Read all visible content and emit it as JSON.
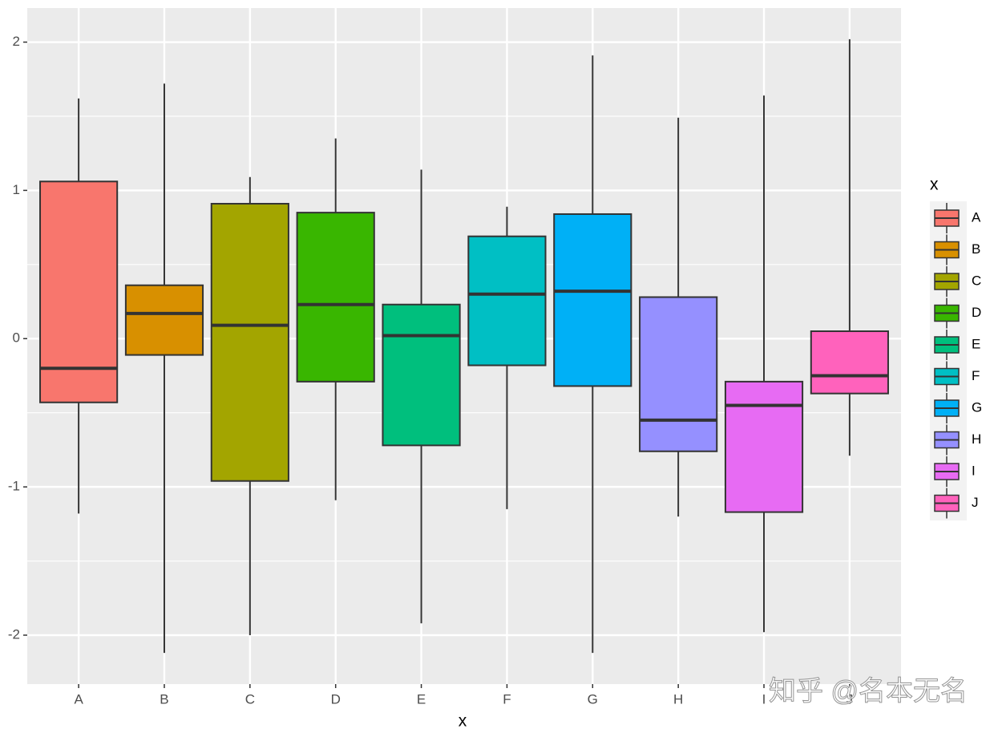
{
  "chart_data": {
    "type": "box",
    "x_label": "x",
    "legend_title": "x",
    "watermark": "知乎 @名本无名",
    "categories": [
      "A",
      "B",
      "C",
      "D",
      "E",
      "F",
      "G",
      "H",
      "I",
      "J"
    ],
    "colors": [
      "#F8766D",
      "#D89000",
      "#A3A500",
      "#39B600",
      "#00BF7D",
      "#00BFC4",
      "#00B0F6",
      "#9590FF",
      "#E76BF3",
      "#FF62BC"
    ],
    "boxes": [
      {
        "whisker_low": -1.18,
        "q1": -0.43,
        "median": -0.2,
        "q3": 1.06,
        "whisker_high": 1.62
      },
      {
        "whisker_low": -2.12,
        "q1": -0.11,
        "median": 0.17,
        "q3": 0.36,
        "whisker_high": 1.72
      },
      {
        "whisker_low": -2.0,
        "q1": -0.96,
        "median": 0.09,
        "q3": 0.91,
        "whisker_high": 1.09
      },
      {
        "whisker_low": -1.09,
        "q1": -0.29,
        "median": 0.23,
        "q3": 0.85,
        "whisker_high": 1.35
      },
      {
        "whisker_low": -1.92,
        "q1": -0.72,
        "median": 0.02,
        "q3": 0.23,
        "whisker_high": 1.14
      },
      {
        "whisker_low": -1.15,
        "q1": -0.18,
        "median": 0.3,
        "q3": 0.69,
        "whisker_high": 0.89
      },
      {
        "whisker_low": -2.12,
        "q1": -0.32,
        "median": 0.32,
        "q3": 0.84,
        "whisker_high": 1.91
      },
      {
        "whisker_low": -1.2,
        "q1": -0.76,
        "median": -0.55,
        "q3": 0.28,
        "whisker_high": 1.49
      },
      {
        "whisker_low": -1.98,
        "q1": -1.17,
        "median": -0.45,
        "q3": -0.29,
        "whisker_high": 1.64
      },
      {
        "whisker_low": -0.79,
        "q1": -0.37,
        "median": -0.25,
        "q3": 0.05,
        "whisker_high": 2.02
      }
    ],
    "ylim": [
      -2.33,
      2.23
    ],
    "yticks": [
      -2,
      -1,
      0,
      1,
      2
    ],
    "grid": true,
    "legend_position": "right"
  }
}
